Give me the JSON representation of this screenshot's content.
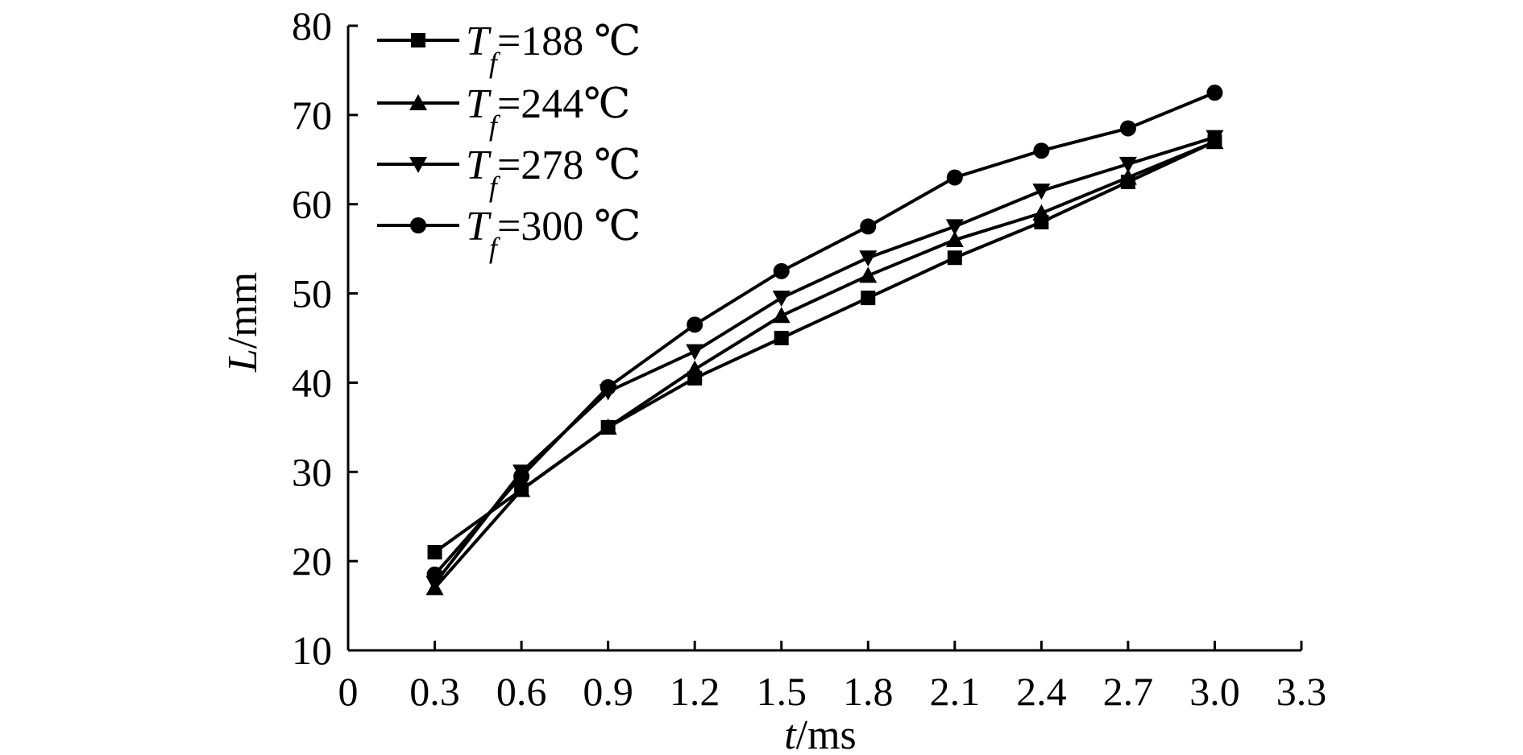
{
  "chart_data": {
    "type": "line",
    "x": [
      0.3,
      0.6,
      0.9,
      1.2,
      1.5,
      1.8,
      2.1,
      2.4,
      2.7,
      3.0
    ],
    "xlim": [
      0,
      3.3
    ],
    "ylim": [
      10,
      80
    ],
    "xticks": [
      0,
      0.3,
      0.6,
      0.9,
      1.2,
      1.5,
      1.8,
      2.1,
      2.4,
      2.7,
      3.0,
      3.3
    ],
    "xtick_labels": [
      "0",
      "0.3",
      "0.6",
      "0.9",
      "1.2",
      "1.5",
      "1.8",
      "2.1",
      "2.4",
      "2.7",
      "3.0",
      "3.3"
    ],
    "yticks": [
      10,
      20,
      30,
      40,
      50,
      60,
      70,
      80
    ],
    "ytick_labels": [
      "10",
      "20",
      "30",
      "40",
      "50",
      "60",
      "70",
      "80"
    ],
    "xlabel": {
      "var": "t",
      "unit": "/ms"
    },
    "ylabel": {
      "var": "L",
      "unit": "/mm"
    },
    "grid": false,
    "legend_position": "top-left",
    "series": [
      {
        "marker": "square",
        "legend": {
          "sym": "T",
          "sub": "f",
          "rest": "=188 ℃"
        },
        "values": [
          21,
          28,
          35,
          40.5,
          45,
          49.5,
          54,
          58,
          62.5,
          67
        ]
      },
      {
        "marker": "triangle-up",
        "legend": {
          "sym": "T",
          "sub": "f",
          "rest": "=244℃"
        },
        "values": [
          17,
          28,
          35,
          41.5,
          47.5,
          52,
          56,
          59,
          63,
          67
        ]
      },
      {
        "marker": "triangle-down",
        "legend": {
          "sym": "T",
          "sub": "f",
          "rest": "=278 ℃"
        },
        "values": [
          17.5,
          30,
          39,
          43.5,
          49.5,
          54,
          57.5,
          61.5,
          64.5,
          67.5
        ]
      },
      {
        "marker": "circle",
        "legend": {
          "sym": "T",
          "sub": "f",
          "rest": "=300 ℃"
        },
        "values": [
          18.5,
          29.5,
          39.5,
          46.5,
          52.5,
          57.5,
          63,
          66,
          68.5,
          72.5
        ]
      }
    ]
  }
}
